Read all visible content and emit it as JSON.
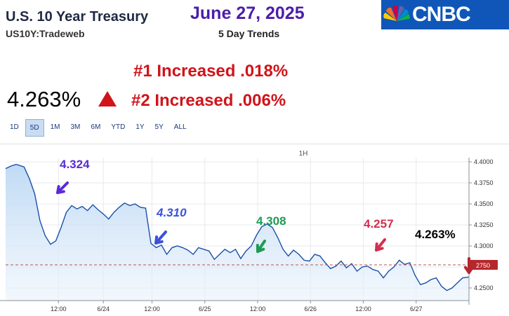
{
  "header": {
    "title": "U.S. 10 Year Treasury",
    "symbol": "US10Y:Tradeweb",
    "date": "June 27, 2025",
    "trend_label": "5 Day Trends",
    "logo": "CNBC",
    "price": "4.263%",
    "note1": "#1 Increased .018%",
    "note2": "#2 Increased .006%",
    "colors": {
      "accent_purple": "#4b1fa8",
      "alert_red": "#d0141a",
      "line": "#1c4fa8",
      "fill": "#cfe3f7"
    }
  },
  "ranges": [
    {
      "label": "1D",
      "active": false
    },
    {
      "label": "5D",
      "active": true
    },
    {
      "label": "1M",
      "active": false
    },
    {
      "label": "3M",
      "active": false
    },
    {
      "label": "6M",
      "active": false
    },
    {
      "label": "YTD",
      "active": false
    },
    {
      "label": "1Y",
      "active": false
    },
    {
      "label": "5Y",
      "active": false
    },
    {
      "label": "ALL",
      "active": false
    }
  ],
  "chart_data": {
    "type": "area",
    "interval_label": "1H",
    "x_tick_labels": [
      "12:00",
      "6/24",
      "12:00",
      "6/25",
      "12:00",
      "6/26",
      "12:00",
      "6/27"
    ],
    "x_tick_positions": [
      1.0,
      1.85,
      2.77,
      3.77,
      4.77,
      5.77,
      6.77,
      7.77
    ],
    "y_ticks": [
      4.25,
      4.275,
      4.3,
      4.325,
      4.35,
      4.375,
      4.4
    ],
    "y_tick_labels": [
      "4.2500",
      "4.2750",
      "4.3000",
      "4.3250",
      "4.3500",
      "4.3750",
      "4.4000"
    ],
    "ylim": [
      4.235,
      4.405
    ],
    "xlim": [
      0,
      8.77
    ],
    "grid": true,
    "current_value_label": "2750",
    "reference_value": 4.2775,
    "series": [
      {
        "x": [
          0.0,
          0.1,
          0.2,
          0.35,
          0.45,
          0.55,
          0.65,
          0.75,
          0.85,
          0.95,
          1.05,
          1.15,
          1.25,
          1.35,
          1.45,
          1.55,
          1.65,
          1.75,
          1.85,
          1.95,
          2.05,
          2.15,
          2.25,
          2.35,
          2.45,
          2.55,
          2.65,
          2.75,
          2.85,
          2.95,
          3.05,
          3.15,
          3.25,
          3.35,
          3.45,
          3.55,
          3.65,
          3.75,
          3.85,
          3.95,
          4.05,
          4.15,
          4.25,
          4.35,
          4.45,
          4.55,
          4.65,
          4.75,
          4.85,
          4.95,
          5.05,
          5.15,
          5.25,
          5.35,
          5.45,
          5.55,
          5.65,
          5.75,
          5.85,
          5.95,
          6.05,
          6.15,
          6.25,
          6.35,
          6.45,
          6.55,
          6.65,
          6.75,
          6.85,
          6.95,
          7.05,
          7.15,
          7.25,
          7.35,
          7.45,
          7.55,
          7.65,
          7.75,
          7.85,
          7.95,
          8.05,
          8.15,
          8.25,
          8.35,
          8.45,
          8.55,
          8.65,
          8.77
        ],
        "y": [
          4.392,
          4.395,
          4.397,
          4.394,
          4.38,
          4.362,
          4.33,
          4.312,
          4.302,
          4.306,
          4.322,
          4.34,
          4.348,
          4.344,
          4.347,
          4.342,
          4.349,
          4.343,
          4.338,
          4.332,
          4.34,
          4.346,
          4.351,
          4.348,
          4.35,
          4.346,
          4.345,
          4.303,
          4.298,
          4.301,
          4.29,
          4.298,
          4.3,
          4.298,
          4.295,
          4.29,
          4.298,
          4.296,
          4.294,
          4.284,
          4.29,
          4.296,
          4.292,
          4.296,
          4.285,
          4.294,
          4.3,
          4.313,
          4.323,
          4.326,
          4.322,
          4.31,
          4.296,
          4.288,
          4.295,
          4.29,
          4.283,
          4.282,
          4.29,
          4.288,
          4.28,
          4.273,
          4.276,
          4.282,
          4.274,
          4.279,
          4.27,
          4.275,
          4.276,
          4.272,
          4.27,
          4.262,
          4.27,
          4.275,
          4.283,
          4.278,
          4.28,
          4.265,
          4.254,
          4.256,
          4.26,
          4.262,
          4.252,
          4.247,
          4.25,
          4.256,
          4.262,
          4.263
        ]
      }
    ]
  },
  "annotations": [
    {
      "text": "4.324",
      "color": "#5a2bd6"
    },
    {
      "text": "4.310",
      "color": "#3b52d9"
    },
    {
      "text": "4.308",
      "color": "#1f9a55"
    },
    {
      "text": "4.257",
      "color": "#d0304f"
    },
    {
      "text": "4.263%",
      "color": "#000000"
    }
  ]
}
